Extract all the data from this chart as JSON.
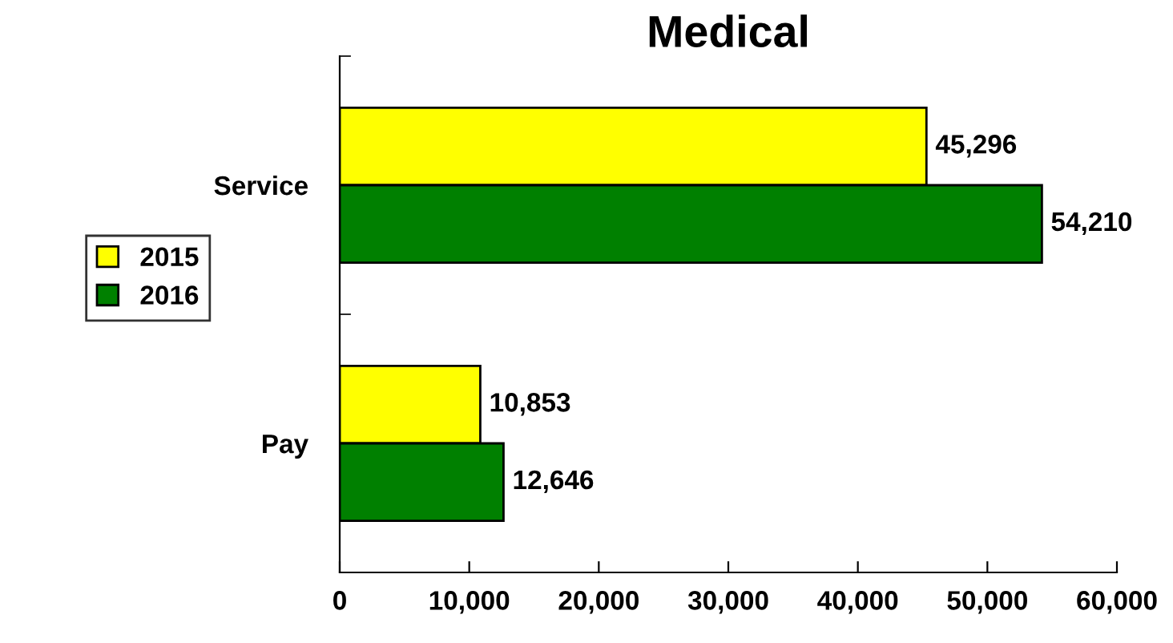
{
  "chart_data": {
    "type": "bar",
    "orientation": "horizontal",
    "title": "Medical",
    "categories": [
      "Service",
      "Pay"
    ],
    "series": [
      {
        "name": "2015",
        "color": "#ffff00",
        "values": [
          45296,
          10853
        ],
        "value_labels": [
          "45,296",
          "10,853"
        ]
      },
      {
        "name": "2016",
        "color": "#008000",
        "values": [
          54210,
          12646
        ],
        "value_labels": [
          "54,210",
          "12,646"
        ]
      }
    ],
    "xlim": [
      0,
      60000
    ],
    "xticks": [
      0,
      {
        "value": 10000,
        "label": "10,000"
      },
      {
        "value": 20000,
        "label": "20,000"
      },
      {
        "value": 30000,
        "label": "30,000"
      },
      {
        "value": 40000,
        "label": "40,000"
      },
      {
        "value": 50000,
        "label": "50,000"
      },
      {
        "value": 60000,
        "label": "60,000"
      }
    ],
    "grid": false,
    "legend": "left"
  }
}
